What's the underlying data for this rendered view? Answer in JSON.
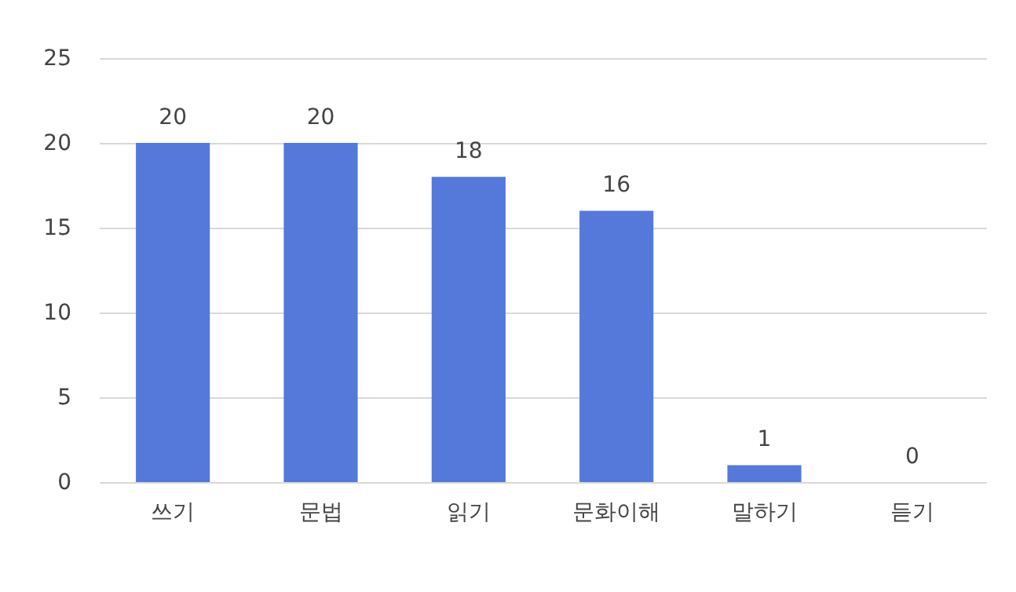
{
  "chart_data": {
    "type": "bar",
    "categories": [
      "쓰기",
      "문법",
      "읽기",
      "문화이해",
      "말하기",
      "듣기"
    ],
    "values": [
      20,
      20,
      18,
      16,
      1,
      0
    ],
    "color": "#5479db",
    "ylim": [
      0,
      25
    ],
    "yticks": [
      0,
      5,
      10,
      15,
      20,
      25
    ],
    "grid": "y",
    "data_labels": true
  }
}
